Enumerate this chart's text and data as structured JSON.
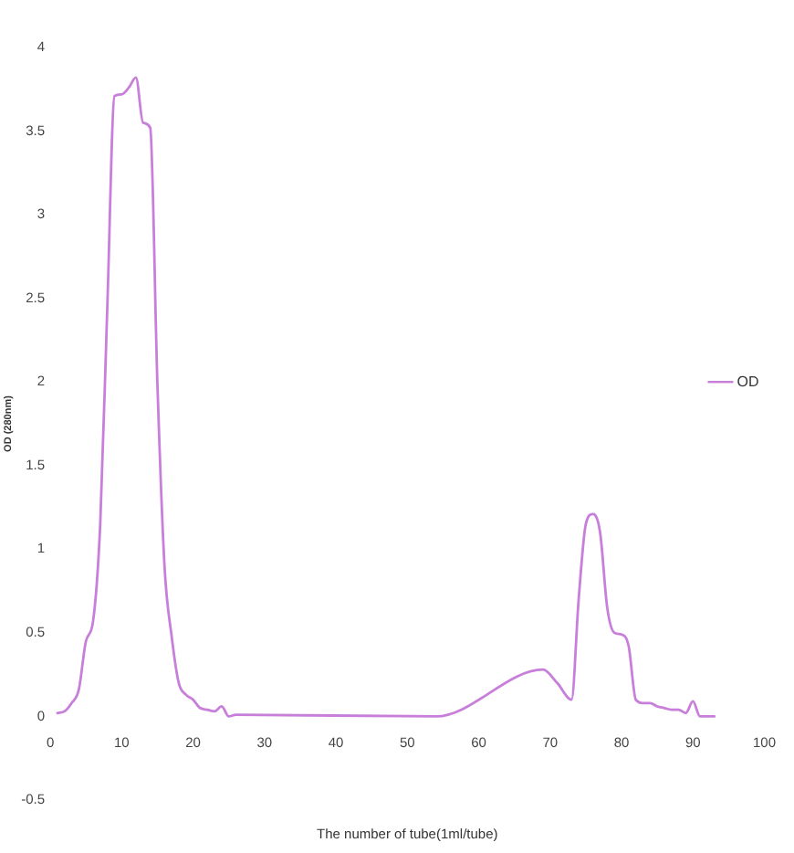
{
  "chart_data": {
    "type": "line",
    "xlabel": "The number of tube(1ml/tube)",
    "ylabel": "OD (280nm)",
    "x": [
      1,
      2,
      3,
      4,
      5,
      6,
      7,
      8,
      9,
      10,
      11,
      12,
      13,
      14,
      15,
      16,
      17,
      18,
      19,
      20,
      21,
      22,
      23,
      24,
      25,
      26,
      54,
      69,
      71,
      73,
      74,
      75,
      76,
      77,
      78,
      79,
      80,
      81,
      82,
      83,
      84,
      85,
      86,
      87,
      88,
      89,
      90,
      91,
      92,
      93
    ],
    "series": [
      {
        "name": "OD",
        "color": "#c77fd9",
        "values": [
          0.02,
          0.03,
          0.08,
          0.16,
          0.45,
          0.57,
          1.15,
          2.46,
          3.71,
          3.72,
          3.76,
          3.82,
          3.55,
          3.52,
          2.0,
          0.9,
          0.48,
          0.2,
          0.13,
          0.1,
          0.05,
          0.04,
          0.03,
          0.06,
          0.0,
          0.01,
          0.0,
          0.28,
          0.2,
          0.1,
          0.7,
          1.15,
          1.21,
          1.1,
          0.65,
          0.5,
          0.49,
          0.42,
          0.1,
          0.08,
          0.08,
          0.06,
          0.05,
          0.04,
          0.04,
          0.02,
          0.09,
          0.0,
          0.0,
          0.0
        ]
      }
    ],
    "xlim": [
      0,
      100
    ],
    "xticks": [
      0,
      10,
      20,
      30,
      40,
      50,
      60,
      70,
      80,
      90,
      100
    ],
    "ylim": [
      -0.5,
      4
    ],
    "yticks": [
      -0.5,
      0,
      0.5,
      1,
      1.5,
      2,
      2.5,
      3,
      3.5,
      4
    ],
    "grid": false,
    "legend": "right"
  }
}
